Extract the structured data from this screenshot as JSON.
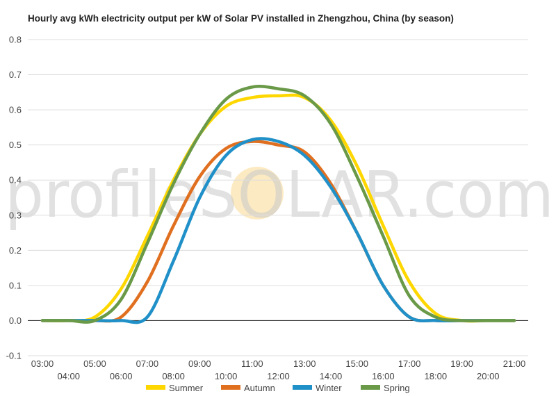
{
  "chart_data": {
    "type": "line",
    "title": "Hourly avg kWh electricity output per kW of Solar PV installed in Zhengzhou, China (by season)",
    "xlabel": "",
    "ylabel": "",
    "x": [
      "03:00",
      "04:00",
      "05:00",
      "06:00",
      "07:00",
      "08:00",
      "09:00",
      "10:00",
      "11:00",
      "12:00",
      "13:00",
      "14:00",
      "15:00",
      "16:00",
      "17:00",
      "18:00",
      "19:00",
      "20:00",
      "21:00"
    ],
    "ylim": [
      -0.1,
      0.8
    ],
    "yticks": [
      -0.1,
      0.0,
      0.1,
      0.2,
      0.3,
      0.4,
      0.5,
      0.6,
      0.7,
      0.8
    ],
    "grid": true,
    "legend_position": "bottom",
    "series": [
      {
        "name": "Summer",
        "color": "#ffd700",
        "values": [
          0,
          0,
          0.01,
          0.09,
          0.24,
          0.4,
          0.53,
          0.61,
          0.635,
          0.64,
          0.635,
          0.57,
          0.44,
          0.27,
          0.11,
          0.02,
          0,
          0,
          0
        ]
      },
      {
        "name": "Autumn",
        "color": "#e07020",
        "values": [
          0,
          0,
          0,
          0.01,
          0.11,
          0.27,
          0.41,
          0.49,
          0.51,
          0.5,
          0.48,
          0.39,
          0.25,
          0.1,
          0.01,
          0,
          0,
          0,
          0
        ]
      },
      {
        "name": "Winter",
        "color": "#2090c8",
        "values": [
          0,
          0,
          0,
          0,
          0.01,
          0.17,
          0.35,
          0.47,
          0.515,
          0.51,
          0.47,
          0.38,
          0.25,
          0.1,
          0.01,
          0,
          0,
          0,
          0
        ]
      },
      {
        "name": "Spring",
        "color": "#6a9a48",
        "values": [
          0,
          0,
          0,
          0.06,
          0.22,
          0.39,
          0.53,
          0.63,
          0.665,
          0.66,
          0.64,
          0.56,
          0.41,
          0.24,
          0.07,
          0.01,
          0,
          0,
          0
        ]
      }
    ],
    "watermark": "profileSOLAR.com"
  }
}
